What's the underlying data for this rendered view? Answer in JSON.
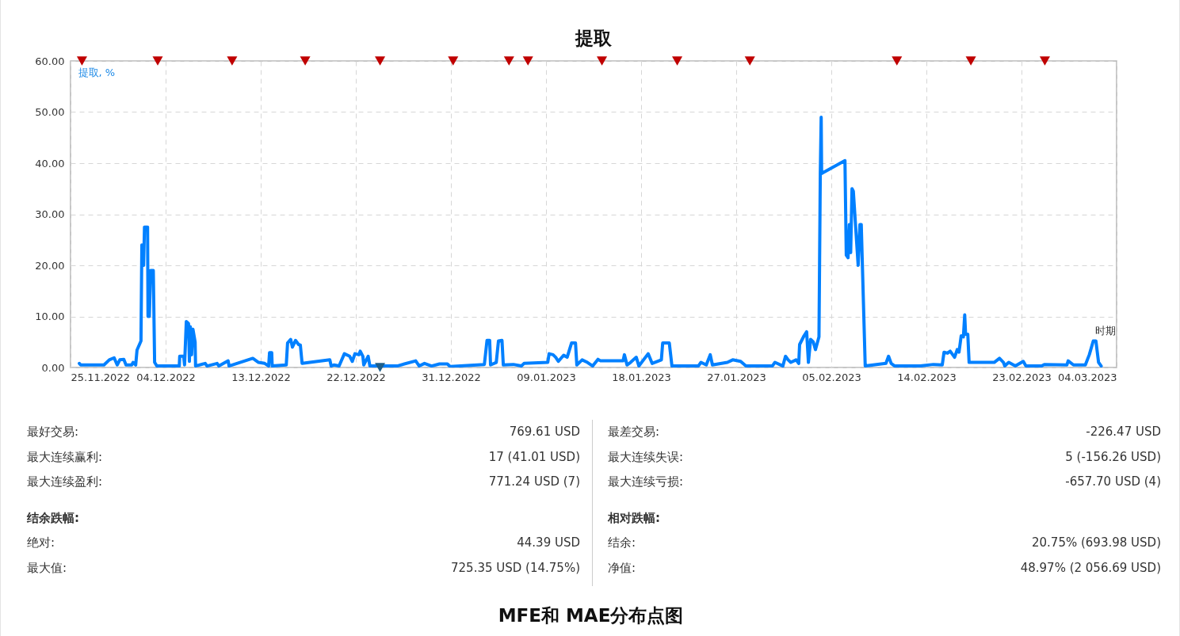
{
  "chart_data": {
    "type": "line",
    "title": "提取",
    "ylabel": "提取, %",
    "xlabel": "时期",
    "xlim": [
      "2022-11-25",
      "2023-03-04"
    ],
    "xticks": [
      {
        "value": "2022-11-25",
        "label": "25.11.2022"
      },
      {
        "value": "2022-12-04",
        "label": "04.12.2022"
      },
      {
        "value": "2022-12-13",
        "label": "13.12.2022"
      },
      {
        "value": "2022-12-22",
        "label": "22.12.2022"
      },
      {
        "value": "2022-12-31",
        "label": "31.12.2022"
      },
      {
        "value": "2023-01-09",
        "label": "09.01.2023"
      },
      {
        "value": "2023-01-18",
        "label": "18.01.2023"
      },
      {
        "value": "2023-01-27",
        "label": "27.01.2023"
      },
      {
        "value": "2023-02-05",
        "label": "05.02.2023"
      },
      {
        "value": "2023-02-14",
        "label": "14.02.2023"
      },
      {
        "value": "2023-02-23",
        "label": "23.02.2023"
      },
      {
        "value": "2023-03-04",
        "label": "04.03.2023"
      }
    ],
    "ylim": [
      0,
      60
    ],
    "yticks": [
      {
        "value": 0,
        "label": "0.00"
      },
      {
        "value": 10,
        "label": "10.00"
      },
      {
        "value": 20,
        "label": "20.00"
      },
      {
        "value": 30,
        "label": "30.00"
      },
      {
        "value": 40,
        "label": "40.00"
      },
      {
        "value": 50,
        "label": "50.00"
      },
      {
        "value": 60,
        "label": "60.00"
      }
    ],
    "grid": true,
    "line_style": "solid",
    "series": [
      {
        "type": "line",
        "color": "#0080ff",
        "marker": "none",
        "x": [
          "2022-11-25T20:00",
          "2022-11-25T23:00",
          "2022-11-28T04:00",
          "2022-11-28T16:00",
          "2022-11-29T03:00",
          "2022-11-29T10:00",
          "2022-11-29T16:00",
          "2022-11-30T01:00",
          "2022-11-30T06:00",
          "2022-11-30T19:00",
          "2022-11-30T22:00",
          "2022-12-01T04:00",
          "2022-12-01T07:00",
          "2022-12-01T16:00",
          "2022-12-01T18:00",
          "2022-12-01T22:00",
          "2022-12-02T00:00",
          "2022-12-02T07:00",
          "2022-12-02T08:00",
          "2022-12-02T11:00",
          "2022-12-02T14:00",
          "2022-12-02T20:00",
          "2022-12-02T23:00",
          "2022-12-03T04:00",
          "2022-12-05T07:00",
          "2022-12-05T08:00",
          "2022-12-05T17:00",
          "2022-12-05T19:00",
          "2022-12-05T23:00",
          "2022-12-06T04:00",
          "2022-12-06T06:00",
          "2022-12-06T08:00",
          "2022-12-06T11:00",
          "2022-12-06T14:00",
          "2022-12-06T19:00",
          "2022-12-06T20:00",
          "2022-12-07T18:00",
          "2022-12-07T22:00",
          "2022-12-08T21:00",
          "2022-12-09T01:00",
          "2022-12-09T22:00",
          "2022-12-10T00:00",
          "2022-12-12T06:00",
          "2022-12-12T19:00",
          "2022-12-13T09:00",
          "2022-12-13T18:00",
          "2022-12-13T20:00",
          "2022-12-14T01:00",
          "2022-12-14T02:00",
          "2022-12-15T10:00",
          "2022-12-15T13:00",
          "2022-12-15T20:00",
          "2022-12-16T00:00",
          "2022-12-16T07:00",
          "2022-12-16T14:00",
          "2022-12-16T18:00",
          "2022-12-16T22:00",
          "2022-12-19T13:00",
          "2022-12-19T16:00",
          "2022-12-19T22:00",
          "2022-12-20T10:00",
          "2022-12-20T22:00",
          "2022-12-21T10:00",
          "2022-12-21T16:00",
          "2022-12-21T22:00",
          "2022-12-22T07:00",
          "2022-12-22T10:00",
          "2022-12-22T16:00",
          "2022-12-22T18:00",
          "2022-12-23T04:00",
          "2022-12-23T08:00",
          "2022-12-25T22:00",
          "2022-12-27T16:00",
          "2022-12-28T00:00",
          "2022-12-28T12:00",
          "2022-12-29T04:00",
          "2022-12-29T22:00",
          "2022-12-30T16:00",
          "2022-12-30T22:00",
          "2023-01-03T04:00",
          "2023-01-03T10:00",
          "2023-01-03T16:00",
          "2023-01-03T18:00",
          "2023-01-04T07:00",
          "2023-01-04T12:00",
          "2023-01-04T20:00",
          "2023-01-04T23:00",
          "2023-01-05T22:00",
          "2023-01-06T16:00",
          "2023-01-06T22:00",
          "2023-01-09T04:00",
          "2023-01-09T07:00",
          "2023-01-09T16:00",
          "2023-01-09T22:00",
          "2023-01-10T04:00",
          "2023-01-10T16:00",
          "2023-01-11T00:00",
          "2023-01-11T10:00",
          "2023-01-11T19:00",
          "2023-01-11T22:00",
          "2023-01-12T10:00",
          "2023-01-12T22:00",
          "2023-01-13T10:00",
          "2023-01-13T22:00",
          "2023-01-14T04:00",
          "2023-01-16T07:00",
          "2023-01-16T10:00",
          "2023-01-16T16:00",
          "2023-01-17T00:00",
          "2023-01-17T13:00",
          "2023-01-17T19:00",
          "2023-01-18T16:00",
          "2023-01-19T01:00",
          "2023-01-19T22:00",
          "2023-01-20T01:00",
          "2023-01-20T16:00",
          "2023-01-20T22:00",
          "2023-01-23T10:00",
          "2023-01-23T16:00",
          "2023-01-24T04:00",
          "2023-01-24T13:00",
          "2023-01-24T18:00",
          "2023-01-26T04:00",
          "2023-01-26T16:00",
          "2023-01-27T10:00",
          "2023-01-27T22:00",
          "2023-01-30T10:00",
          "2023-01-30T16:00",
          "2023-01-31T10:00",
          "2023-01-31T16:00",
          "2023-01-31T22:00",
          "2023-02-01T04:00",
          "2023-02-01T16:00",
          "2023-02-01T22:00",
          "2023-02-02T00:00",
          "2023-02-02T10:00",
          "2023-02-02T16:00",
          "2023-02-02T20:00",
          "2023-02-03T01:00",
          "2023-02-03T07:00",
          "2023-02-03T12:00",
          "2023-02-03T20:00",
          "2023-02-03T23:00",
          "2023-02-04T01:00",
          "2023-02-04T02:00",
          "2023-02-06T07:00",
          "2023-02-06T10:00",
          "2023-02-06T14:00",
          "2023-02-06T17:00",
          "2023-02-06T20:00",
          "2023-02-06T23:00",
          "2023-02-07T02:00",
          "2023-02-07T13:00",
          "2023-02-07T17:00",
          "2023-02-07T20:00",
          "2023-02-08T05:00",
          "2023-02-10T04:00",
          "2023-02-10T10:00",
          "2023-02-10T16:00",
          "2023-02-11T00:00",
          "2023-02-13T10:00",
          "2023-02-14T16:00",
          "2023-02-15T12:00",
          "2023-02-15T16:00",
          "2023-02-16T00:00",
          "2023-02-16T06:00",
          "2023-02-16T16:00",
          "2023-02-16T22:00",
          "2023-02-17T02:00",
          "2023-02-17T07:00",
          "2023-02-17T12:00",
          "2023-02-17T15:00",
          "2023-02-17T17:00",
          "2023-02-17T22:00",
          "2023-02-18T01:00",
          "2023-02-20T10:00",
          "2023-02-20T22:00",
          "2023-02-21T07:00",
          "2023-02-21T10:00",
          "2023-02-21T19:00",
          "2023-02-22T10:00",
          "2023-02-23T04:00",
          "2023-02-23T10:00",
          "2023-02-24T22:00",
          "2023-02-25T04:00",
          "2023-02-27T07:00",
          "2023-02-27T10:00",
          "2023-02-27T22:00",
          "2023-03-01T01:00",
          "2023-03-01T10:00",
          "2023-03-01T19:00",
          "2023-03-02T01:00",
          "2023-03-02T07:00",
          "2023-03-02T13:00"
        ],
        "values": [
          0.8,
          0.5,
          0.5,
          1.5,
          1.9,
          0.5,
          1.5,
          1.6,
          0.5,
          0.5,
          1.0,
          0.5,
          3.4,
          5.2,
          24,
          20,
          27.5,
          27.5,
          10,
          10,
          19,
          19,
          1.0,
          0.3,
          0.3,
          2.2,
          2.2,
          0.5,
          9.0,
          8.6,
          1.2,
          8.0,
          2.5,
          7.5,
          5.0,
          0.3,
          0.8,
          0.3,
          0.8,
          0.3,
          1.3,
          0.3,
          1.8,
          1.0,
          0.8,
          0.3,
          2.9,
          2.9,
          0.3,
          0.5,
          4.8,
          5.5,
          4.0,
          5.3,
          4.5,
          4.4,
          0.8,
          1.5,
          0.3,
          0.5,
          0.3,
          2.7,
          2.2,
          1.2,
          2.7,
          2.5,
          3.2,
          2.2,
          0.5,
          2.2,
          0.3,
          0.3,
          1.3,
          0.3,
          0.8,
          0.3,
          0.7,
          0.7,
          0.2,
          0.6,
          5.3,
          5.3,
          0.5,
          1.0,
          5.2,
          5.3,
          0.5,
          0.6,
          0.3,
          0.8,
          1.0,
          2.7,
          2.5,
          2.0,
          1.2,
          2.4,
          2.0,
          4.8,
          4.8,
          0.5,
          1.5,
          1.0,
          0.3,
          1.6,
          1.3,
          1.3,
          2.5,
          0.5,
          1.0,
          2.0,
          0.3,
          2.7,
          0.8,
          1.5,
          4.8,
          4.8,
          0.3,
          0.3,
          1.0,
          0.5,
          2.5,
          0.5,
          1.0,
          1.5,
          1.2,
          0.3,
          0.3,
          1.0,
          0.3,
          2.2,
          1.5,
          1.0,
          1.5,
          0.8,
          4.5,
          6.2,
          7.0,
          1.0,
          5.5,
          5.0,
          3.5,
          6.0,
          38,
          49,
          38,
          40.5,
          22,
          21.5,
          28,
          22.5,
          35,
          34.5,
          20,
          28,
          28,
          0.3,
          0.8,
          2.2,
          0.8,
          0.3,
          0.3,
          0.6,
          0.5,
          3.0,
          2.8,
          3.2,
          2.0,
          3.5,
          3.0,
          6.2,
          6.0,
          10.3,
          6.5,
          6.5,
          1.0,
          1.0,
          1.8,
          1.0,
          0.3,
          1.0,
          0.3,
          1.2,
          0.3,
          0.3,
          0.6,
          0.5,
          1.3,
          0.5,
          0.5,
          2.5,
          5.2,
          5.2,
          1.0,
          0.3
        ]
      },
      {
        "type": "scatter",
        "color": "#c00000",
        "marker": "triangle",
        "x": [
          "2022-11-26T02:00",
          "2022-12-03T06:00",
          "2022-12-10T07:00",
          "2022-12-17T05:00",
          "2022-12-24T07:00",
          "2022-12-31T05:00",
          "2023-01-05T12:00",
          "2023-01-07T07:00",
          "2023-01-14T07:00",
          "2023-01-21T10:00",
          "2023-01-28T07:00",
          "2023-02-11T05:00",
          "2023-02-18T05:00",
          "2023-02-25T05:00"
        ],
        "values": [
          60,
          60,
          60,
          60,
          60,
          60,
          60,
          60,
          60,
          60,
          60,
          60,
          60,
          60
        ]
      },
      {
        "type": "scatter",
        "color": "#1f5f8b",
        "marker": "triangle",
        "x": [
          "2022-12-24T07:00"
        ],
        "values": [
          0
        ]
      }
    ],
    "annotations": [
      "最好交易: 769.61 USD",
      "最大连续赢利: 17 (41.01 USD)",
      "最大连续盈利: 771.24 USD (7)",
      "结余跌幅:",
      "绝对: 44.39 USD",
      "最大值: 725.35 USD (14.75%)",
      "最差交易: -226.47 USD",
      "最大连续失误: 5 (-156.26 USD)",
      "最大连续亏损: -657.70 USD (4)",
      "相对跌幅:",
      "结余: 20.75% (693.98 USD)",
      "净值: 48.97% (2 056.69 USD)",
      "MFE和 MAE分布点图"
    ]
  }
}
